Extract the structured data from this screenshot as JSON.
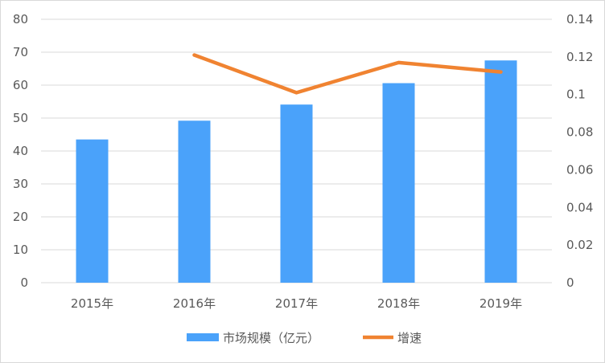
{
  "chart_data": {
    "type": "bar+line",
    "categories": [
      "2015年",
      "2016年",
      "2017年",
      "2018年",
      "2019年"
    ],
    "series": [
      {
        "name": "市场规模（亿元）",
        "type": "bar",
        "axis": "left",
        "color": "#4aa2fa",
        "values": [
          43.5,
          49.2,
          54.1,
          60.6,
          67.5
        ]
      },
      {
        "name": "增速",
        "type": "line",
        "axis": "right",
        "color": "#f08331",
        "values": [
          null,
          0.121,
          0.101,
          0.117,
          0.112
        ]
      }
    ],
    "y_left": {
      "ylim": [
        0,
        80
      ],
      "ticks": [
        "0",
        "10",
        "20",
        "30",
        "40",
        "50",
        "60",
        "70",
        "80"
      ]
    },
    "y_right": {
      "ylim": [
        0,
        0.14
      ],
      "ticks": [
        "0",
        "0.02",
        "0.04",
        "0.06",
        "0.08",
        "0.1",
        "0.12",
        "0.14"
      ]
    },
    "grid": true,
    "legend": "bottom"
  }
}
